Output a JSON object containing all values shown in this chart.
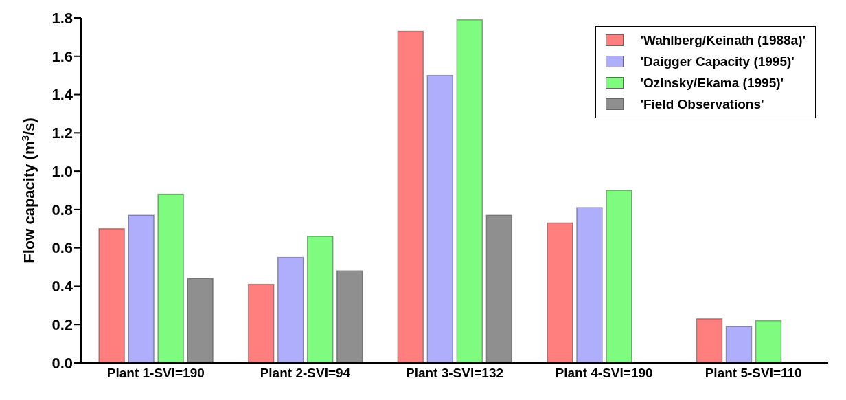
{
  "chart_data": {
    "type": "bar",
    "ylabel": "Flow capacity (m$^{3}$/s)",
    "categories": [
      "Plant 1-SVI=190",
      "Plant 2-SVI=94",
      "Plant 3-SVI=132",
      "Plant 4-SVI=190",
      "Plant 5-SVI=110"
    ],
    "series": [
      {
        "name": "'Wahlberg/Keinath (1988a)'",
        "color": "#ff7f7f",
        "values": [
          0.7,
          0.41,
          1.73,
          0.73,
          0.23
        ]
      },
      {
        "name": "'Daigger Capacity (1995)'",
        "color": "#aeaefc",
        "values": [
          0.77,
          0.55,
          1.5,
          0.81,
          0.19
        ]
      },
      {
        "name": "'Ozinsky/Ekama (1995)'",
        "color": "#7ffb7f",
        "values": [
          0.88,
          0.66,
          1.79,
          0.9,
          0.22
        ]
      },
      {
        "name": "'Field Observations'",
        "color": "#8f8f8f",
        "values": [
          0.44,
          0.48,
          0.77,
          0,
          0
        ]
      }
    ],
    "ylim": [
      0,
      1.8
    ],
    "yticks": [
      {
        "value": 0,
        "label": "0.0"
      },
      0.2,
      0.4,
      0.6,
      0.8,
      {
        "value": 1,
        "label": "1.0"
      },
      1.2,
      1.4,
      1.6,
      1.8
    ],
    "grid": false,
    "legend": "top right"
  }
}
